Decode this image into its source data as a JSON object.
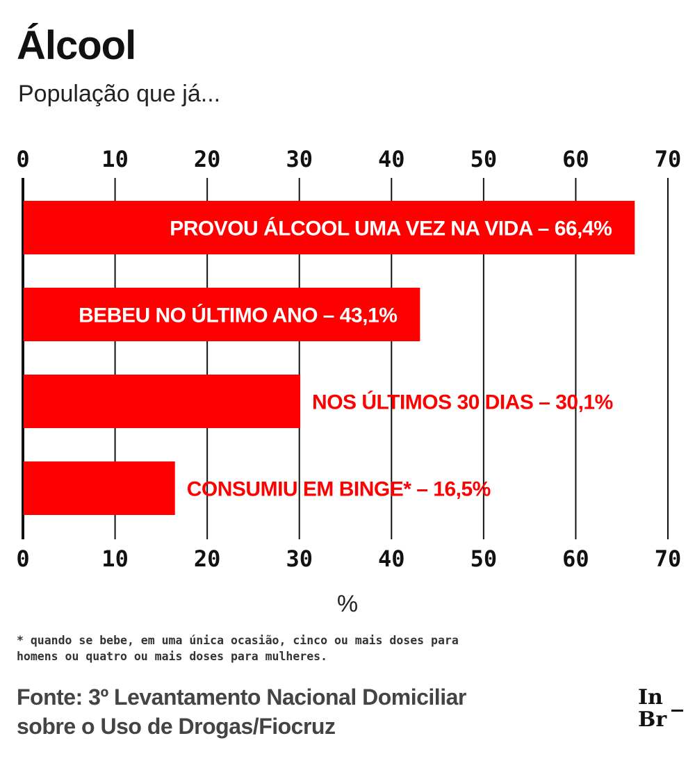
{
  "title": "Álcool",
  "subtitle": "População que já...",
  "chart_data": {
    "type": "bar",
    "orientation": "horizontal",
    "categories": [
      "PROVOU ÁLCOOL UMA VEZ NA VIDA",
      "BEBEU NO ÚLTIMO ANO",
      "NOS ÚLTIMOS 30 DIAS",
      "CONSUMIU EM BINGE*"
    ],
    "values": [
      66.4,
      43.1,
      30.1,
      16.5
    ],
    "labels": [
      "PROVOU ÁLCOOL UMA VEZ NA VIDA – 66,4%",
      "BEBEU NO ÚLTIMO ANO – 43,1%",
      "NOS ÚLTIMOS 30 DIAS – 30,1%",
      "CONSUMIU EM BINGE* – 16,5%"
    ],
    "xlim": [
      0,
      70
    ],
    "ticks": [
      0,
      10,
      20,
      30,
      40,
      50,
      60,
      70
    ],
    "xlabel": "%",
    "grid": true,
    "bar_color": "#ff0000"
  },
  "footnote": "* quando se bebe, em uma única ocasião, cinco ou mais doses para\nhomens ou quatro ou mais doses para mulheres.",
  "source": "Fonte: 3º Levantamento Nacional Domiciliar sobre o Uso de Drogas/Fiocruz",
  "logo": "In Br"
}
